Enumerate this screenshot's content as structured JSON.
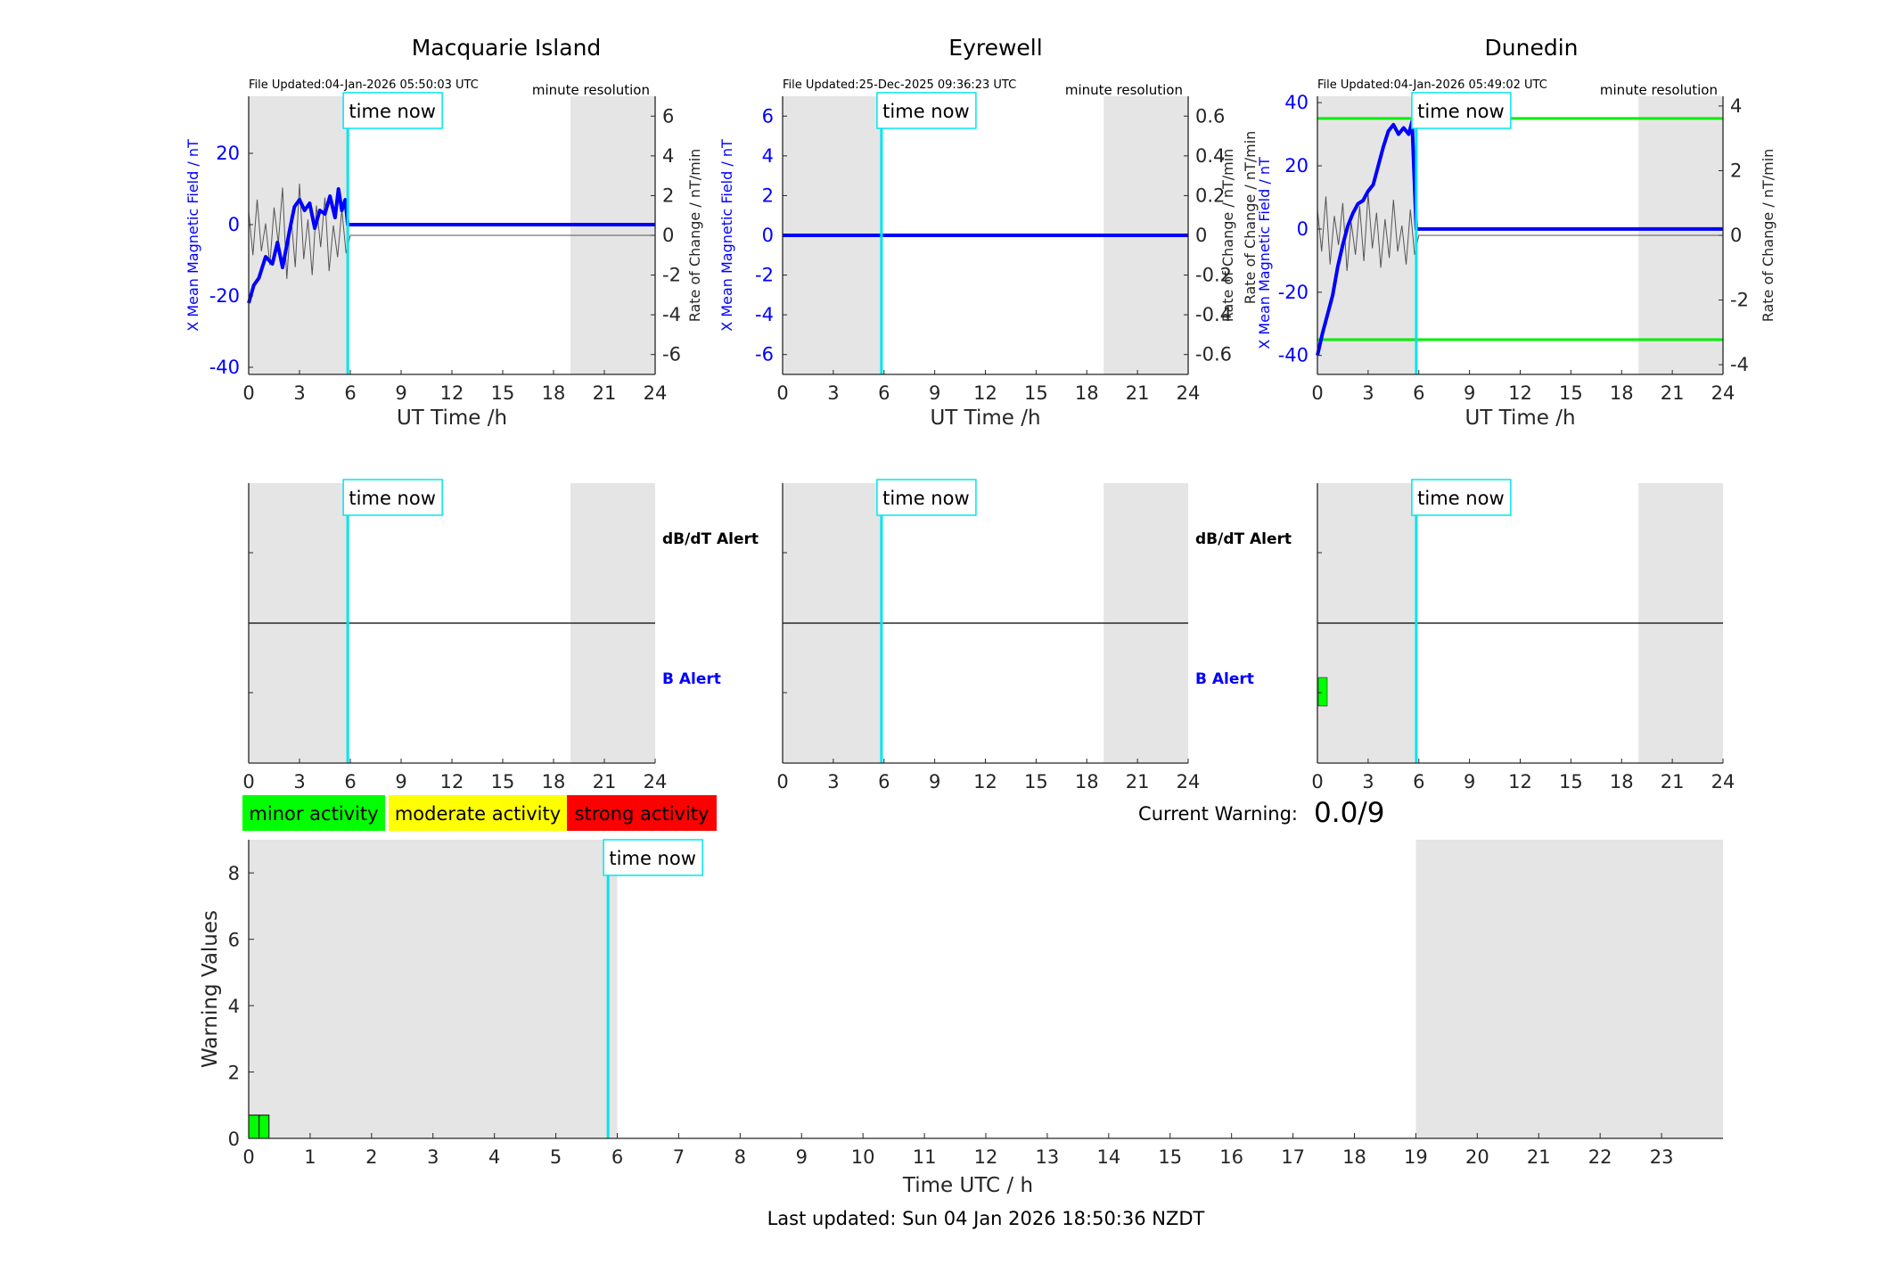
{
  "figure": {
    "stations": [
      {
        "title": "Macquarie Island",
        "file_updated": "File Updated:04-Jan-2026 05:50:03 UTC",
        "resolution": "minute resolution",
        "left_ylabel": "X Mean Magnetic Field / nT",
        "right_ylabel": "Rate of Change / nT/min",
        "xlabel": "UT Time /h",
        "left_ticks": [
          "-40",
          "-20",
          "0",
          "20"
        ],
        "right_ticks": [
          "-6",
          "-4",
          "-2",
          "0",
          "2",
          "4",
          "6"
        ],
        "x_ticks": [
          "0",
          "3",
          "6",
          "9",
          "12",
          "15",
          "18",
          "21",
          "24"
        ],
        "time_now_label": "time now"
      },
      {
        "title": "Eyrewell",
        "file_updated": "File Updated:25-Dec-2025 09:36:23 UTC",
        "resolution": "minute resolution",
        "left_ylabel": "X Mean Magnetic Field / nT",
        "right_ylabel": "Rate of Change / nT/min",
        "xlabel": "UT Time /h",
        "left_ticks": [
          "-6",
          "-4",
          "-2",
          "0",
          "2",
          "4",
          "6"
        ],
        "right_ticks": [
          "-0.6",
          "-0.4",
          "-0.2",
          "0",
          "0.2",
          "0.4",
          "0.6"
        ],
        "x_ticks": [
          "0",
          "3",
          "6",
          "9",
          "12",
          "15",
          "18",
          "21",
          "24"
        ],
        "time_now_label": "time now"
      },
      {
        "title": "Dunedin",
        "file_updated": "File Updated:04-Jan-2026 05:49:02 UTC",
        "resolution": "minute resolution",
        "left_ylabel": "X Mean Magnetic Field / nT",
        "right_ylabel": "Rate of Change / nT/min",
        "xlabel": "UT Time /h",
        "left_ticks": [
          "-40",
          "-20",
          "0",
          "20",
          "40"
        ],
        "right_ticks": [
          "-4",
          "-2",
          "0",
          "2",
          "4"
        ],
        "x_ticks": [
          "0",
          "3",
          "6",
          "9",
          "12",
          "15",
          "18",
          "21",
          "24"
        ],
        "time_now_label": "time now"
      }
    ],
    "alert_panels": [
      {
        "dbdt_label": "dB/dT Alert",
        "b_label": "B Alert",
        "x_ticks": [
          "0",
          "3",
          "6",
          "9",
          "12",
          "15",
          "18",
          "21",
          "24"
        ],
        "time_now_label": "time now"
      },
      {
        "dbdt_label": "dB/dT Alert",
        "b_label": "B Alert",
        "x_ticks": [
          "0",
          "3",
          "6",
          "9",
          "12",
          "15",
          "18",
          "21",
          "24"
        ],
        "time_now_label": "time now"
      },
      {
        "x_ticks": [
          "0",
          "3",
          "6",
          "9",
          "12",
          "15",
          "18",
          "21",
          "24"
        ],
        "time_now_label": "time now"
      }
    ],
    "legend": {
      "items": [
        {
          "label": "minor activity",
          "color": "#00ff00"
        },
        {
          "label": "moderate activity",
          "color": "#ffff00"
        },
        {
          "label": "strong activity",
          "color": "#ff0000"
        }
      ]
    },
    "current_warning": {
      "label": "Current Warning:",
      "value": "0.0/9"
    },
    "warning_panel": {
      "ylabel": "Warning Values",
      "xlabel": "Time UTC / h",
      "y_ticks": [
        "0",
        "2",
        "4",
        "6",
        "8"
      ],
      "x_ticks": [
        "0",
        "1",
        "2",
        "3",
        "4",
        "5",
        "6",
        "7",
        "8",
        "9",
        "10",
        "11",
        "12",
        "13",
        "14",
        "15",
        "16",
        "17",
        "18",
        "19",
        "20",
        "21",
        "22",
        "23"
      ],
      "time_now_label": "time now"
    },
    "last_updated": "Last updated: Sun 04 Jan 2026 18:50:36 NZDT",
    "colors": {
      "field_line": "#0000ff",
      "rate_line": "#555555",
      "time_now": "#00e5ee",
      "shade": "#e5e5e5",
      "threshold": "#00ee00",
      "alert_block": "#00ff00",
      "axis": "#262626"
    }
  },
  "chart_data": [
    {
      "type": "line",
      "title": "Macquarie Island",
      "xlabel": "UT Time /h",
      "ylabel": "X Mean Magnetic Field / nT",
      "y2label": "Rate of Change / nT/min",
      "xlim": [
        0,
        24
      ],
      "ylim": [
        -42,
        36
      ],
      "y2lim": [
        -7,
        7
      ],
      "time_now_h": 5.85,
      "shaded_x": [
        [
          0,
          5.85
        ],
        [
          19,
          24
        ]
      ],
      "series": [
        {
          "axis": "left",
          "x": [
            0,
            0.3,
            0.6,
            1.0,
            1.4,
            1.7,
            2.0,
            2.4,
            2.7,
            3.0,
            3.3,
            3.6,
            3.9,
            4.2,
            4.5,
            4.8,
            5.1,
            5.3,
            5.5,
            5.7,
            5.85,
            6,
            24
          ],
          "y": [
            -22,
            -17,
            -15,
            -9,
            -11,
            -5,
            -12,
            -2,
            5,
            7,
            4,
            6,
            -1,
            4,
            3,
            8,
            2,
            10,
            4,
            7,
            0,
            0,
            0
          ]
        },
        {
          "axis": "right",
          "x": [
            0,
            0.25,
            0.5,
            0.75,
            1.0,
            1.25,
            1.5,
            1.75,
            2.0,
            2.25,
            2.5,
            2.75,
            3.0,
            3.25,
            3.5,
            3.75,
            4.0,
            4.25,
            4.5,
            4.75,
            5.0,
            5.25,
            5.5,
            5.75,
            6,
            24
          ],
          "y": [
            1.2,
            -1.0,
            1.8,
            -0.8,
            0.6,
            -1.5,
            1.4,
            -0.4,
            2.4,
            -2.2,
            1.0,
            -1.6,
            2.6,
            -1.2,
            0.8,
            -2.0,
            1.5,
            -0.6,
            1.9,
            -1.8,
            0.5,
            -1.1,
            1.3,
            -0.9,
            0,
            0
          ]
        }
      ]
    },
    {
      "type": "line",
      "title": "Eyrewell",
      "xlabel": "UT Time /h",
      "ylabel": "X Mean Magnetic Field / nT",
      "y2label": "Rate of Change / nT/min",
      "xlim": [
        0,
        24
      ],
      "ylim": [
        -7,
        7
      ],
      "y2lim": [
        -0.7,
        0.7
      ],
      "time_now_h": 5.85,
      "shaded_x": [
        [
          0,
          5.85
        ],
        [
          19,
          24
        ]
      ],
      "series": [
        {
          "axis": "left",
          "x": [
            0,
            24
          ],
          "y": [
            0,
            0
          ]
        },
        {
          "axis": "right",
          "x": [
            0,
            24
          ],
          "y": [
            0,
            0
          ]
        }
      ]
    },
    {
      "type": "line",
      "title": "Dunedin",
      "xlabel": "UT Time /h",
      "ylabel": "X Mean Magnetic Field / nT",
      "y2label": "Rate of Change / nT/min",
      "xlim": [
        0,
        24
      ],
      "ylim": [
        -46,
        42
      ],
      "y2lim": [
        -4.3,
        4.3
      ],
      "time_now_h": 5.85,
      "shaded_x": [
        [
          0,
          5.85
        ],
        [
          19,
          24
        ]
      ],
      "thresholds": [
        35,
        -35
      ],
      "series": [
        {
          "axis": "left",
          "x": [
            0,
            0.3,
            0.6,
            0.9,
            1.2,
            1.5,
            1.8,
            2.1,
            2.4,
            2.7,
            3.0,
            3.3,
            3.6,
            3.9,
            4.2,
            4.5,
            4.8,
            5.1,
            5.4,
            5.6,
            5.85,
            6,
            24
          ],
          "y": [
            -40,
            -33,
            -27,
            -21,
            -12,
            -5,
            1,
            5,
            8,
            9,
            12,
            14,
            20,
            26,
            31,
            33,
            30,
            32,
            30,
            34,
            0,
            0,
            0
          ]
        },
        {
          "axis": "right",
          "x": [
            0,
            0.25,
            0.5,
            0.75,
            1.0,
            1.25,
            1.5,
            1.75,
            2.0,
            2.25,
            2.5,
            2.75,
            3.0,
            3.25,
            3.5,
            3.75,
            4.0,
            4.25,
            4.5,
            4.75,
            5.0,
            5.25,
            5.5,
            5.75,
            6,
            24
          ],
          "y": [
            0.8,
            -0.5,
            1.2,
            -0.9,
            0.6,
            -0.3,
            1.0,
            -1.1,
            0.4,
            -0.6,
            0.9,
            -0.8,
            1.3,
            -0.4,
            0.7,
            -1.0,
            0.5,
            -0.7,
            1.1,
            -0.5,
            0.3,
            -0.9,
            0.8,
            -0.6,
            0,
            0
          ]
        }
      ]
    },
    {
      "type": "bar",
      "title": "",
      "xlabel": "Time UTC / h",
      "ylabel": "Warning Values",
      "xlim": [
        0,
        24
      ],
      "ylim": [
        0,
        9
      ],
      "time_now_h": 5.85,
      "shaded_x": [
        [
          0,
          6
        ],
        [
          19,
          24
        ]
      ],
      "bars": [
        {
          "x_start": 0,
          "x_end": 0.17,
          "value": 0.7
        },
        {
          "x_start": 0.17,
          "x_end": 0.33,
          "value": 0.7
        }
      ]
    }
  ]
}
